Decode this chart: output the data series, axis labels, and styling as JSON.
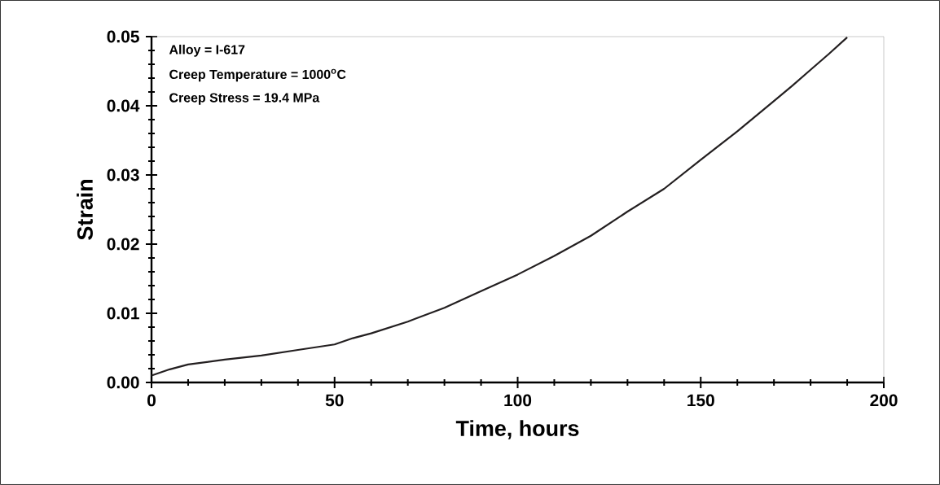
{
  "chart_data": {
    "type": "line",
    "xlabel": "Time, hours",
    "ylabel": "Strain",
    "annotations": [
      "Alloy = I-617",
      "Creep Temperature = 1000$^{o}$C",
      "Creep Stress = 19.4 MPa"
    ],
    "x": [
      0,
      5,
      10,
      20,
      30,
      40,
      50,
      55,
      60,
      70,
      80,
      90,
      100,
      110,
      120,
      130,
      140,
      150,
      160,
      170,
      175,
      180,
      185,
      190
    ],
    "series": [
      {
        "color": "#231f20",
        "values": [
          0.001,
          0.0019,
          0.0026,
          0.0033,
          0.0039,
          0.0047,
          0.0055,
          0.0064,
          0.0071,
          0.0088,
          0.0108,
          0.0132,
          0.0156,
          0.0183,
          0.0212,
          0.0247,
          0.028,
          0.0322,
          0.0363,
          0.0407,
          0.0429,
          0.0452,
          0.0475,
          0.0499
        ]
      }
    ],
    "xlim": [
      0,
      200
    ],
    "ylim": [
      0,
      0.05
    ],
    "xticks": [
      0,
      50,
      100,
      150,
      200
    ],
    "yticks": [
      {
        "value": 0,
        "label": "0.00"
      },
      {
        "value": 0.01,
        "label": "0.01"
      },
      {
        "value": 0.02,
        "label": "0.02"
      },
      {
        "value": 0.03,
        "label": "0.03"
      },
      {
        "value": 0.04,
        "label": "0.04"
      },
      {
        "value": 0.05,
        "label": "0.05"
      }
    ],
    "marker": "none",
    "line_style": "solid"
  }
}
